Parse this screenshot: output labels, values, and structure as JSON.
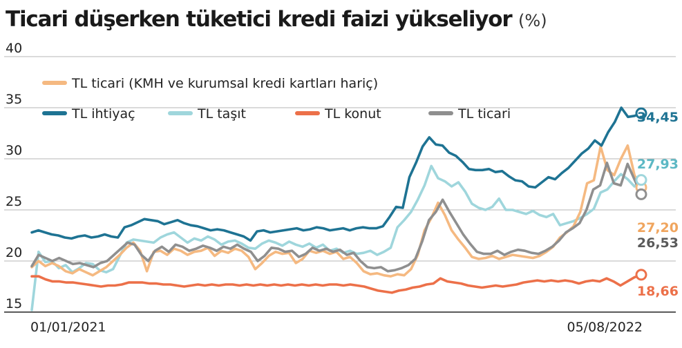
{
  "chart_data": {
    "type": "line",
    "title": "Ticari düşerken tüketici kredi faizi yükseliyor",
    "unit": "(%)",
    "ylim": [
      15,
      40
    ],
    "y_ticks": [
      "15",
      "20",
      "25",
      "30",
      "35",
      "40"
    ],
    "x_labels": [
      "01/01/2021",
      "05/08/2022"
    ],
    "grid": true,
    "legend_position": "top-left",
    "series": [
      {
        "name": "TL ticari (KMH ve kurumsal kredi kartları hariç)",
        "color": "#f5b981",
        "end_value": "27,20",
        "values": [
          19.4,
          20.0,
          19.5,
          19.8,
          19.5,
          19.0,
          18.8,
          19.2,
          18.9,
          18.6,
          19.0,
          19.4,
          20.0,
          20.6,
          21.3,
          21.8,
          21.0,
          19.0,
          20.9,
          21.0,
          20.6,
          21.2,
          21.0,
          20.6,
          20.9,
          21.0,
          21.3,
          20.5,
          21.0,
          20.8,
          21.2,
          21.0,
          20.4,
          19.2,
          19.8,
          20.5,
          20.9,
          20.7,
          20.8,
          19.8,
          20.2,
          21.0,
          20.8,
          21.0,
          20.7,
          20.9,
          20.2,
          20.4,
          19.8,
          19.0,
          18.7,
          18.8,
          18.6,
          18.5,
          18.7,
          18.6,
          19.2,
          20.6,
          23.0,
          24.2,
          25.7,
          24.5,
          23.0,
          22.1,
          21.3,
          20.4,
          20.2,
          20.3,
          20.5,
          20.2,
          20.4,
          20.6,
          20.5,
          20.4,
          20.3,
          20.5,
          20.9,
          21.4,
          22.3,
          22.8,
          23.4,
          24.8,
          27.6,
          27.9,
          31.2,
          28.9,
          28.4,
          30.0,
          31.3,
          28.4,
          27.2
        ]
      },
      {
        "name": "TL ihtiyaç",
        "color": "#1e7393",
        "end_value": "34,45",
        "values": [
          22.8,
          23.0,
          22.8,
          22.6,
          22.5,
          22.3,
          22.2,
          22.4,
          22.5,
          22.3,
          22.4,
          22.6,
          22.4,
          22.3,
          23.3,
          23.5,
          23.8,
          24.1,
          24.0,
          23.9,
          23.6,
          23.8,
          24.0,
          23.7,
          23.5,
          23.4,
          23.2,
          23.0,
          23.1,
          23.0,
          22.8,
          22.6,
          22.4,
          22.0,
          22.9,
          23.0,
          22.8,
          22.9,
          23.0,
          23.1,
          23.2,
          23.0,
          23.1,
          23.3,
          23.2,
          23.0,
          23.1,
          23.2,
          23.0,
          23.2,
          23.3,
          23.2,
          23.2,
          23.4,
          24.3,
          25.3,
          25.2,
          28.2,
          29.6,
          31.2,
          32.1,
          31.4,
          31.3,
          30.6,
          30.3,
          29.7,
          29.0,
          28.9,
          28.9,
          29.0,
          28.7,
          28.8,
          28.3,
          27.9,
          27.8,
          27.3,
          27.2,
          27.7,
          28.2,
          28.0,
          28.6,
          29.1,
          29.8,
          30.5,
          31.0,
          31.8,
          31.3,
          32.6,
          33.6,
          35.0,
          34.1,
          34.2,
          34.45
        ]
      },
      {
        "name": "TL taşıt",
        "color": "#9fd6dc",
        "end_value": "27,93",
        "values": [
          15.2,
          20.9,
          19.9,
          20.0,
          19.3,
          19.6,
          18.9,
          19.3,
          19.8,
          19.7,
          19.1,
          18.9,
          19.2,
          20.5,
          21.8,
          22.1,
          22.0,
          21.9,
          21.8,
          22.3,
          22.6,
          22.8,
          22.3,
          21.8,
          22.2,
          22.0,
          22.4,
          22.1,
          21.6,
          21.9,
          22.0,
          21.7,
          21.3,
          21.2,
          21.7,
          22.0,
          21.8,
          21.5,
          21.9,
          21.6,
          21.4,
          21.7,
          21.3,
          21.6,
          21.0,
          21.2,
          20.8,
          21.0,
          20.7,
          20.8,
          21.0,
          20.6,
          20.9,
          21.3,
          23.3,
          24.0,
          24.8,
          26.0,
          27.4,
          29.3,
          28.1,
          27.8,
          27.3,
          27.7,
          26.8,
          25.6,
          25.2,
          25.0,
          25.3,
          26.1,
          25.0,
          25.0,
          24.8,
          24.6,
          24.9,
          24.5,
          24.3,
          24.6,
          23.5,
          23.7,
          23.9,
          24.2,
          24.6,
          25.1,
          26.7,
          27.0,
          27.8,
          28.5,
          28.0,
          27.3,
          27.93
        ]
      },
      {
        "name": "TL konut",
        "color": "#ec7049",
        "end_value": "18,66",
        "values": [
          18.5,
          18.5,
          18.2,
          18.0,
          18.0,
          17.9,
          17.9,
          17.8,
          17.7,
          17.6,
          17.5,
          17.6,
          17.6,
          17.7,
          17.9,
          17.9,
          17.9,
          17.8,
          17.8,
          17.7,
          17.7,
          17.6,
          17.5,
          17.6,
          17.7,
          17.6,
          17.7,
          17.6,
          17.7,
          17.7,
          17.6,
          17.7,
          17.6,
          17.7,
          17.6,
          17.7,
          17.6,
          17.7,
          17.6,
          17.7,
          17.6,
          17.7,
          17.6,
          17.7,
          17.7,
          17.6,
          17.7,
          17.6,
          17.5,
          17.3,
          17.1,
          17.0,
          16.9,
          17.1,
          17.2,
          17.4,
          17.5,
          17.7,
          17.8,
          18.3,
          18.0,
          17.9,
          17.8,
          17.6,
          17.5,
          17.4,
          17.5,
          17.6,
          17.5,
          17.6,
          17.7,
          17.9,
          18.0,
          18.1,
          18.0,
          18.1,
          18.0,
          18.1,
          18.0,
          17.8,
          18.0,
          18.1,
          18.0,
          18.3,
          18.0,
          17.6,
          18.0,
          18.4,
          18.66
        ]
      },
      {
        "name": "TL ticari",
        "color": "#8f8f8f",
        "end_value": "26,53",
        "values": [
          19.5,
          20.6,
          20.3,
          20.0,
          20.3,
          20.0,
          19.7,
          19.8,
          19.6,
          19.4,
          19.8,
          20.0,
          20.6,
          21.2,
          21.8,
          21.6,
          20.6,
          20.0,
          21.0,
          21.4,
          20.9,
          21.6,
          21.4,
          21.0,
          21.2,
          21.5,
          21.3,
          21.0,
          21.4,
          21.2,
          21.6,
          21.2,
          20.9,
          20.0,
          20.5,
          21.3,
          21.2,
          20.9,
          21.0,
          20.4,
          20.7,
          21.3,
          21.0,
          21.2,
          20.9,
          21.1,
          20.6,
          20.8,
          20.0,
          19.4,
          19.3,
          19.4,
          19.0,
          19.1,
          19.3,
          19.6,
          20.2,
          21.9,
          24.0,
          24.8,
          26.0,
          24.8,
          23.7,
          22.6,
          21.7,
          20.9,
          20.7,
          20.7,
          21.0,
          20.6,
          20.9,
          21.1,
          21.0,
          20.8,
          20.7,
          21.0,
          21.4,
          22.0,
          22.8,
          23.2,
          23.7,
          25.0,
          27.0,
          27.4,
          29.6,
          27.6,
          27.4,
          29.5,
          28.0,
          26.53
        ]
      }
    ]
  }
}
